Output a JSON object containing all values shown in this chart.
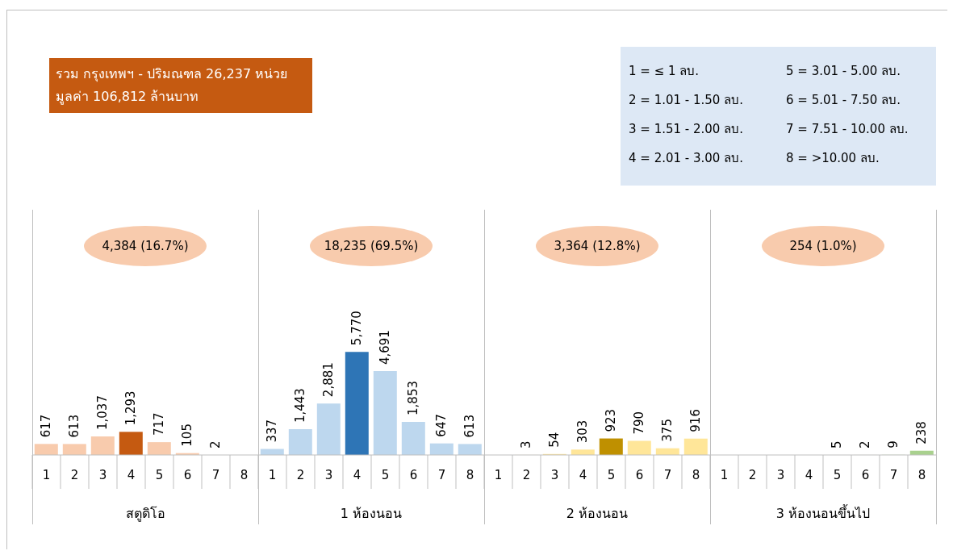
{
  "chart_data": {
    "type": "bar",
    "title": "รวม กรุงเทพฯ - ปริมณฑล 26,237 หน่วย",
    "subtitle": "มูลค่า 106,812 ล้านบาท",
    "categories": [
      "1",
      "2",
      "3",
      "4",
      "5",
      "6",
      "7",
      "8",
      "1",
      "2",
      "3",
      "4",
      "5",
      "6",
      "7",
      "8",
      "1",
      "2",
      "3",
      "4",
      "5",
      "6",
      "7",
      "8",
      "1",
      "2",
      "3",
      "4",
      "5",
      "6",
      "7",
      "8"
    ],
    "values": [
      617,
      613,
      1037,
      1293,
      717,
      105,
      2,
      null,
      337,
      1443,
      2881,
      5770,
      4691,
      1853,
      647,
      613,
      null,
      3,
      54,
      303,
      923,
      790,
      375,
      916,
      null,
      null,
      null,
      null,
      5,
      2,
      9,
      238
    ],
    "value_labels": [
      "617",
      "613",
      "1,037",
      "1,293",
      "717",
      "105",
      "2",
      null,
      "337",
      "1,443",
      "2,881",
      "5,770",
      "4,691",
      "1,853",
      "647",
      "613",
      null,
      "3",
      "54",
      "303",
      "923",
      "790",
      "375",
      "916",
      null,
      null,
      null,
      null,
      "5",
      "2",
      "9",
      "238"
    ],
    "colors": [
      "#f8cbad",
      "#f8cbad",
      "#f8cbad",
      "#c55a11",
      "#f8cbad",
      "#f8cbad",
      "#f8cbad",
      "#f8cbad",
      "#bdd7ee",
      "#bdd7ee",
      "#bdd7ee",
      "#2e75b6",
      "#bdd7ee",
      "#bdd7ee",
      "#bdd7ee",
      "#bdd7ee",
      "#ffe699",
      "#ffe699",
      "#ffe699",
      "#ffe699",
      "#bf9000",
      "#ffe699",
      "#ffe699",
      "#ffe699",
      "#c5e0b4",
      "#c5e0b4",
      "#c5e0b4",
      "#c5e0b4",
      "#c5e0b4",
      "#c5e0b4",
      "#c5e0b4",
      "#a9d18e"
    ],
    "annotations": [
      "1 =  ≤ 1 ลบ.",
      "2 =  1.01 - 1.50 ลบ.",
      "3 =  1.51 - 2.00 ลบ.",
      "4 =  2.01 - 3.00 ลบ.",
      "5 =  3.01 - 5.00 ลบ.",
      "6 =  5.01 - 7.50 ลบ.",
      "7 =  7.51 - 10.00 ลบ.",
      "8 =  >10.00 ลบ.",
      "4,384 (16.7%)",
      "18,235 (69.5%)",
      "3,364 (12.8%)",
      "254 (1.0%)",
      "สตูดิโอ",
      "1 ห้องนอน",
      "2 ห้องนอน",
      "3 ห้องนอนขึ้นไป"
    ]
  }
}
